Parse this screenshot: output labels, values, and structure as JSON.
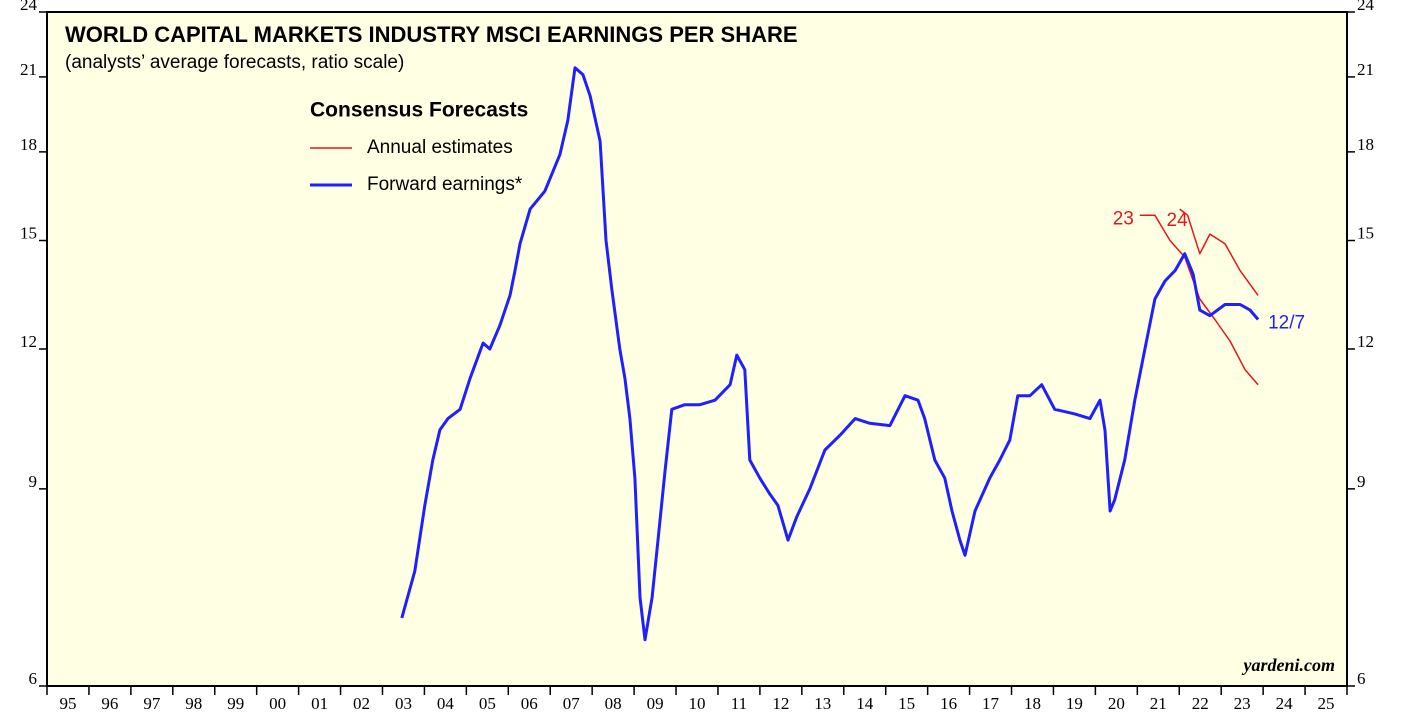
{
  "chart_data": {
    "type": "line",
    "title": "WORLD CAPITAL MARKETS INDUSTRY MSCI EARNINGS PER SHARE",
    "subtitle": "(analysts’ average forecasts, ratio scale)",
    "legend_title": "Consensus Forecasts",
    "source": "yardeni.com",
    "log_scale": true,
    "ylim": [
      6,
      24
    ],
    "yticks": [
      6,
      9,
      12,
      15,
      18,
      21,
      24
    ],
    "xlim": [
      1995,
      2026
    ],
    "xticks": [
      {
        "value": 1995.5,
        "label": "95"
      },
      {
        "value": 1996.5,
        "label": "96"
      },
      {
        "value": 1997.5,
        "label": "97"
      },
      {
        "value": 1998.5,
        "label": "98"
      },
      {
        "value": 1999.5,
        "label": "99"
      },
      {
        "value": 2000.5,
        "label": "00"
      },
      {
        "value": 2001.5,
        "label": "01"
      },
      {
        "value": 2002.5,
        "label": "02"
      },
      {
        "value": 2003.5,
        "label": "03"
      },
      {
        "value": 2004.5,
        "label": "04"
      },
      {
        "value": 2005.5,
        "label": "05"
      },
      {
        "value": 2006.5,
        "label": "06"
      },
      {
        "value": 2007.5,
        "label": "07"
      },
      {
        "value": 2008.5,
        "label": "08"
      },
      {
        "value": 2009.5,
        "label": "09"
      },
      {
        "value": 2010.5,
        "label": "10"
      },
      {
        "value": 2011.5,
        "label": "11"
      },
      {
        "value": 2012.5,
        "label": "12"
      },
      {
        "value": 2013.5,
        "label": "13"
      },
      {
        "value": 2014.5,
        "label": "14"
      },
      {
        "value": 2015.5,
        "label": "15"
      },
      {
        "value": 2016.5,
        "label": "16"
      },
      {
        "value": 2017.5,
        "label": "17"
      },
      {
        "value": 2018.5,
        "label": "18"
      },
      {
        "value": 2019.5,
        "label": "19"
      },
      {
        "value": 2020.5,
        "label": "20"
      },
      {
        "value": 2021.5,
        "label": "21"
      },
      {
        "value": 2022.5,
        "label": "22"
      },
      {
        "value": 2023.5,
        "label": "23"
      },
      {
        "value": 2024.5,
        "label": "24"
      },
      {
        "value": 2025.5,
        "label": "25"
      }
    ],
    "xminorticks": [
      1995,
      1996,
      1997,
      1998,
      1999,
      2000,
      2001,
      2002,
      2003,
      2004,
      2005,
      2006,
      2007,
      2008,
      2009,
      2010,
      2011,
      2012,
      2013,
      2014,
      2015,
      2016,
      2017,
      2018,
      2019,
      2020,
      2021,
      2022,
      2023,
      2024,
      2025,
      2026
    ],
    "series": [
      {
        "name": "Annual estimates",
        "label": "23",
        "color": "#e8141c",
        "x": [
          2021.06,
          2021.42,
          2021.78,
          2022.13,
          2022.49,
          2022.85,
          2023.21,
          2023.57,
          2023.88
        ],
        "values": [
          15.8,
          15.8,
          15.0,
          14.5,
          13.3,
          12.75,
          12.2,
          11.5,
          11.15
        ]
      },
      {
        "label": "24",
        "color": "#e8141c",
        "x": [
          2022.01,
          2022.2,
          2022.49,
          2022.73,
          2023.09,
          2023.45,
          2023.88
        ],
        "values": [
          16.0,
          15.8,
          14.6,
          15.2,
          14.9,
          14.1,
          13.4
        ]
      },
      {
        "name": "Forward earnings*",
        "label": "12/7",
        "color": "#1f1fff",
        "x": [
          2003.46,
          2003.77,
          2004.01,
          2004.2,
          2004.37,
          2004.56,
          2004.85,
          2005.09,
          2005.4,
          2005.56,
          2005.8,
          2006.04,
          2006.16,
          2006.28,
          2006.52,
          2006.87,
          2007.23,
          2007.42,
          2007.59,
          2007.78,
          2007.95,
          2008.19,
          2008.33,
          2008.47,
          2008.66,
          2008.78,
          2008.9,
          2009.02,
          2009.14,
          2009.26,
          2009.43,
          2009.57,
          2009.74,
          2009.9,
          2010.21,
          2010.57,
          2010.93,
          2011.29,
          2011.45,
          2011.64,
          2011.76,
          2012.0,
          2012.24,
          2012.43,
          2012.67,
          2012.88,
          2013.19,
          2013.55,
          2013.91,
          2014.27,
          2014.62,
          2015.1,
          2015.46,
          2015.77,
          2015.93,
          2016.17,
          2016.41,
          2016.58,
          2016.77,
          2016.89,
          2017.13,
          2017.48,
          2017.72,
          2017.96,
          2018.15,
          2018.44,
          2018.72,
          2019.03,
          2019.51,
          2019.87,
          2020.11,
          2020.23,
          2020.35,
          2020.46,
          2020.7,
          2020.94,
          2021.18,
          2021.42,
          2021.66,
          2021.9,
          2022.13,
          2022.33,
          2022.49,
          2022.73,
          2023.09,
          2023.45,
          2023.69,
          2023.88
        ],
        "values": [
          6.9,
          7.6,
          8.7,
          9.55,
          10.16,
          10.4,
          10.6,
          11.3,
          12.15,
          12.0,
          12.6,
          13.4,
          14.1,
          14.9,
          16.0,
          16.6,
          17.9,
          19.2,
          21.4,
          21.1,
          20.2,
          18.4,
          15.0,
          13.55,
          12.0,
          11.3,
          10.4,
          9.2,
          7.2,
          6.6,
          7.2,
          8.1,
          9.35,
          10.6,
          10.7,
          10.7,
          10.8,
          11.15,
          11.85,
          11.5,
          9.55,
          9.2,
          8.9,
          8.7,
          8.1,
          8.5,
          9.0,
          9.75,
          10.05,
          10.4,
          10.3,
          10.25,
          10.9,
          10.8,
          10.4,
          9.55,
          9.2,
          8.6,
          8.1,
          7.85,
          8.6,
          9.2,
          9.55,
          9.95,
          10.9,
          10.9,
          11.15,
          10.6,
          10.5,
          10.4,
          10.8,
          10.15,
          8.6,
          8.8,
          9.55,
          10.8,
          12.0,
          13.3,
          13.8,
          14.1,
          14.6,
          14.0,
          13.0,
          12.85,
          13.15,
          13.15,
          13.0,
          12.75
        ]
      }
    ]
  }
}
